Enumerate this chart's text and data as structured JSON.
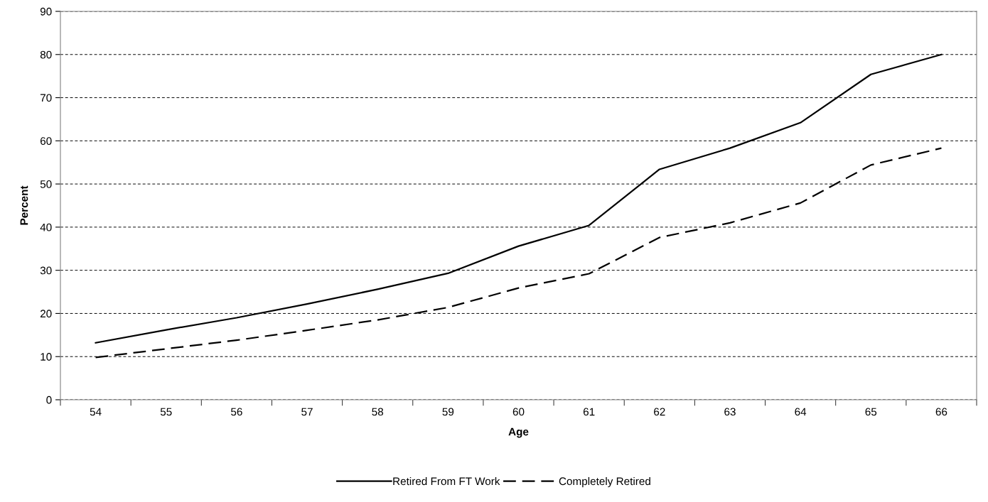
{
  "chart_data": {
    "type": "line",
    "xlabel": "Age",
    "ylabel": "Percent",
    "categories": [
      "54",
      "55",
      "56",
      "57",
      "58",
      "59",
      "60",
      "61",
      "62",
      "63",
      "64",
      "65",
      "66"
    ],
    "series": [
      {
        "name": "Retired From FT Work",
        "color": "#000000",
        "line_style": "solid",
        "values": [
          13.2,
          16.2,
          19.0,
          22.2,
          25.6,
          29.3,
          35.6,
          40.4,
          53.4,
          58.3,
          64.2,
          75.4,
          80.0
        ]
      },
      {
        "name": "Completely Retired",
        "color": "#000000",
        "line_style": "dashed",
        "values": [
          9.8,
          11.8,
          13.8,
          16.1,
          18.5,
          21.4,
          25.9,
          29.2,
          37.6,
          41.0,
          45.6,
          54.4,
          58.3
        ]
      }
    ],
    "ylim": [
      0,
      90
    ],
    "yticks": [
      0,
      10,
      20,
      30,
      40,
      50,
      60,
      70,
      80,
      90
    ],
    "grid": "y",
    "legend": "bottom",
    "marker": "none"
  }
}
